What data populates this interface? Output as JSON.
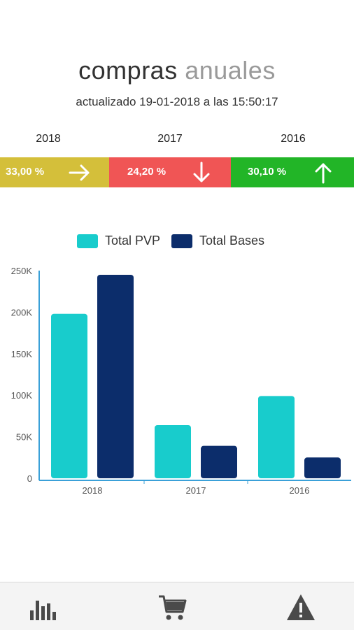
{
  "header": {
    "title_word1": "compras",
    "title_word2": "anuales",
    "subtitle": "actualizado 19-01-2018 a las 15:50:17"
  },
  "summary": [
    {
      "year": "2018",
      "percent": "33,00 %",
      "color": "#d4bf3a",
      "trend": "right-arrow-icon"
    },
    {
      "year": "2017",
      "percent": "24,20 %",
      "color": "#f05555",
      "trend": "down-arrow-icon"
    },
    {
      "year": "2016",
      "percent": "30,10 %",
      "color": "#22b527",
      "trend": "up-arrow-icon"
    }
  ],
  "chart_data": {
    "type": "bar",
    "categories": [
      "2018",
      "2017",
      "2016"
    ],
    "series": [
      {
        "name": "Total PVP",
        "color": "#18cccc",
        "values": [
          198000,
          64000,
          99000
        ]
      },
      {
        "name": "Total Bases",
        "color": "#0c2d6b",
        "values": [
          245000,
          39000,
          25000
        ]
      }
    ],
    "ylim": [
      0,
      250000
    ],
    "yticks": [
      "0",
      "50K",
      "100K",
      "150K",
      "200K",
      "250K"
    ],
    "grid": false,
    "legend": "top-center"
  },
  "bottom_nav": [
    {
      "icon": "bar-chart-icon"
    },
    {
      "icon": "shopping-cart-icon"
    },
    {
      "icon": "warning-icon"
    }
  ]
}
